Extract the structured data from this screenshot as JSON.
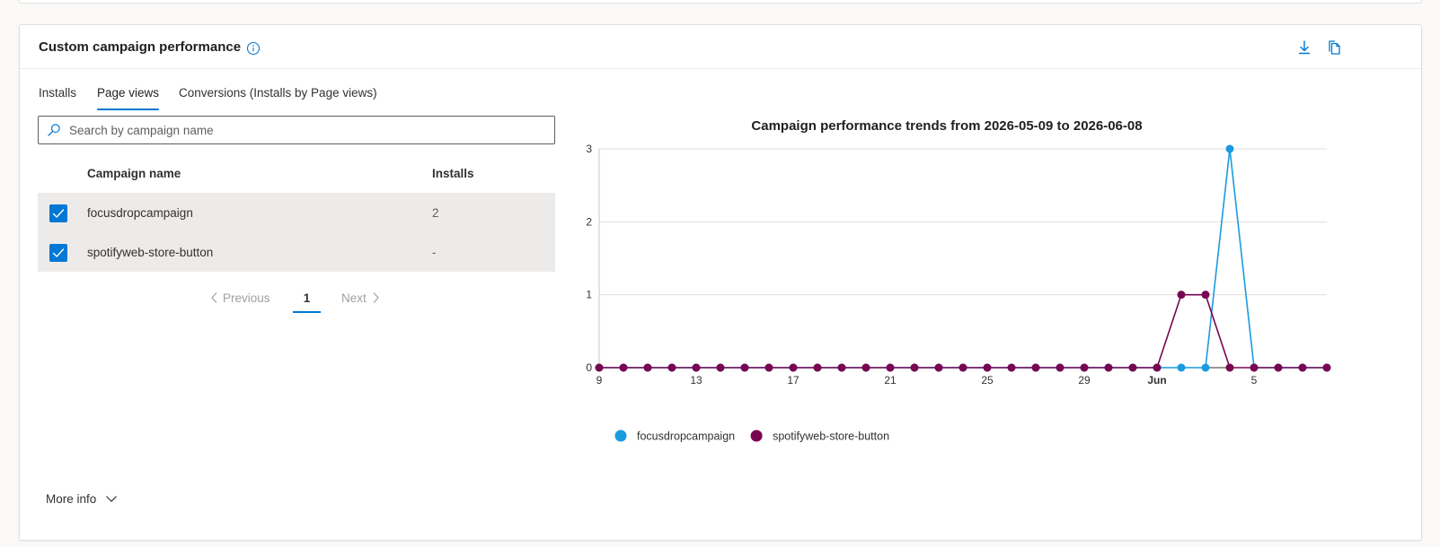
{
  "card": {
    "title": "Custom campaign performance",
    "info_icon": "info-icon",
    "download_icon": "download-icon",
    "copy_icon": "copy-icon"
  },
  "tabs": [
    {
      "label": "Installs",
      "active": false
    },
    {
      "label": "Page views",
      "active": true
    },
    {
      "label": "Conversions (Installs by Page views)",
      "active": false
    }
  ],
  "search": {
    "placeholder": "Search by campaign name",
    "value": ""
  },
  "table": {
    "headers": [
      "Campaign name",
      "Installs"
    ],
    "rows": [
      {
        "name": "focusdropcampaign",
        "value": "2",
        "checked": true
      },
      {
        "name": "spotifyweb-store-button",
        "value": "-",
        "checked": true
      }
    ]
  },
  "pager": {
    "previous": "Previous",
    "page": "1",
    "next": "Next"
  },
  "more_info": "More info",
  "colors": {
    "accent": "#0078d4",
    "series1": "#1a9be0",
    "series2": "#780650"
  },
  "chart_data": {
    "type": "line",
    "title": "Campaign performance trends from 2026-05-09 to 2026-06-08",
    "x_start": "2026-05-09",
    "x": [
      "2026-05-09",
      "2026-05-10",
      "2026-05-11",
      "2026-05-12",
      "2026-05-13",
      "2026-05-14",
      "2026-05-15",
      "2026-05-16",
      "2026-05-17",
      "2026-05-18",
      "2026-05-19",
      "2026-05-20",
      "2026-05-21",
      "2026-05-22",
      "2026-05-23",
      "2026-05-24",
      "2026-05-25",
      "2026-05-26",
      "2026-05-27",
      "2026-05-28",
      "2026-05-29",
      "2026-05-30",
      "2026-05-31",
      "2026-06-01",
      "2026-06-02",
      "2026-06-03",
      "2026-06-04",
      "2026-06-05",
      "2026-06-06",
      "2026-06-07",
      "2026-06-08"
    ],
    "x_tick_labels": [
      {
        "label": "9",
        "index": 0,
        "bold": false
      },
      {
        "label": "13",
        "index": 4,
        "bold": false
      },
      {
        "label": "17",
        "index": 8,
        "bold": false
      },
      {
        "label": "21",
        "index": 12,
        "bold": false
      },
      {
        "label": "25",
        "index": 16,
        "bold": false
      },
      {
        "label": "29",
        "index": 20,
        "bold": false
      },
      {
        "label": "Jun",
        "index": 23,
        "bold": true
      },
      {
        "label": "5",
        "index": 27,
        "bold": false
      }
    ],
    "y_ticks": [
      "0",
      "1",
      "2",
      "3"
    ],
    "ylim": [
      0,
      3
    ],
    "grid": true,
    "legend_position": "bottom-left",
    "series": [
      {
        "name": "focusdropcampaign",
        "color": "#1a9be0",
        "values": [
          0,
          0,
          0,
          0,
          0,
          0,
          0,
          0,
          0,
          0,
          0,
          0,
          0,
          0,
          0,
          0,
          0,
          0,
          0,
          0,
          0,
          0,
          0,
          0,
          0,
          0,
          3,
          0,
          0,
          0,
          0
        ]
      },
      {
        "name": "spotifyweb-store-button",
        "color": "#780650",
        "values": [
          0,
          0,
          0,
          0,
          0,
          0,
          0,
          0,
          0,
          0,
          0,
          0,
          0,
          0,
          0,
          0,
          0,
          0,
          0,
          0,
          0,
          0,
          0,
          0,
          1,
          1,
          0,
          0,
          0,
          0,
          0
        ]
      }
    ]
  }
}
